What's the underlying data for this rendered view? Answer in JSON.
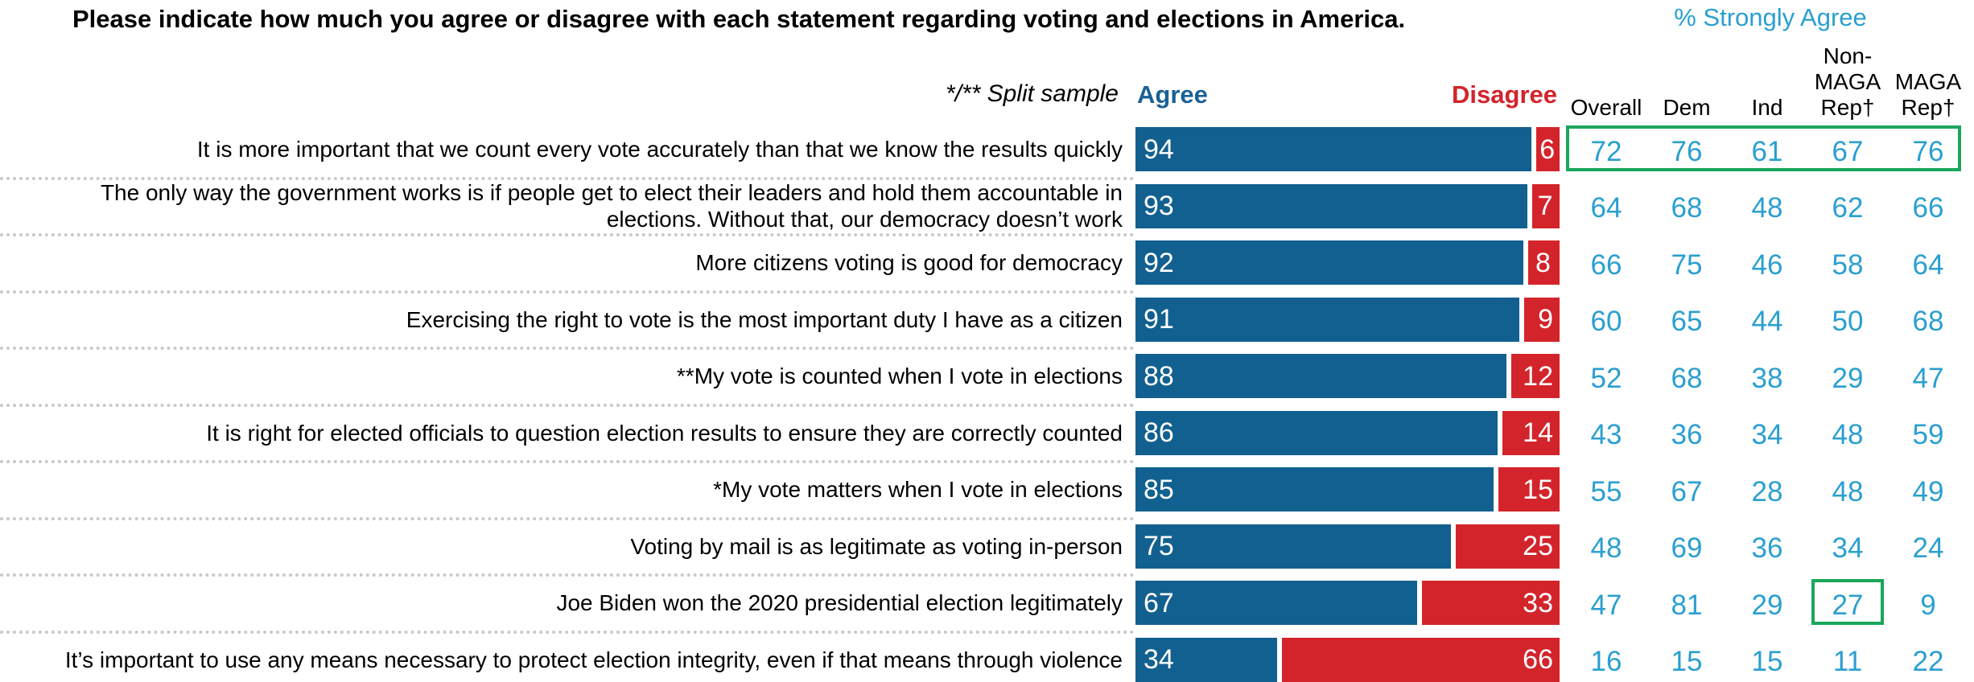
{
  "title": "Please indicate how much you agree or disagree with each statement regarding voting and elections in America.",
  "split_note": "*/** Split sample",
  "agree_label": "Agree",
  "disagree_label": "Disagree",
  "strongly_agree_title": "% Strongly Agree",
  "columns": [
    {
      "lines": [
        "Overall"
      ]
    },
    {
      "lines": [
        "Dem"
      ]
    },
    {
      "lines": [
        "Ind"
      ]
    },
    {
      "lines": [
        "Non-",
        "MAGA",
        "Rep†"
      ]
    },
    {
      "lines": [
        "MAGA",
        "Rep†"
      ]
    }
  ],
  "colors": {
    "agree": "#12608f",
    "disagree": "#d3242b",
    "strongly_agree": "#2a9fd0",
    "highlight": "#1aa65a"
  },
  "highlights": [
    {
      "type": "row",
      "row": 0
    },
    {
      "type": "cell",
      "row": 8,
      "col": 3
    }
  ],
  "chart_data": {
    "type": "bar",
    "stacked": true,
    "orientation": "horizontal",
    "categories": [
      "It is more important that we count every vote accurately than that we know the results quickly",
      "The only way the government works is if people get to elect their leaders and hold them accountable in elections. Without that, our democracy doesn’t work",
      "More citizens voting is good for democracy",
      "Exercising the right to vote is the most important duty I have as a citizen",
      "**My vote is counted when I vote in elections",
      "It is right for elected officials to question election results to ensure they are correctly counted",
      "*My vote matters when I vote in elections",
      "Voting by mail is as legitimate as voting in-person",
      "Joe Biden won the 2020 presidential election legitimately",
      "It’s important to use any means necessary to protect election integrity, even if that means through violence"
    ],
    "series": [
      {
        "name": "Agree",
        "values": [
          94,
          93,
          92,
          91,
          88,
          86,
          85,
          75,
          67,
          34
        ]
      },
      {
        "name": "Disagree",
        "values": [
          6,
          7,
          8,
          9,
          12,
          14,
          15,
          25,
          33,
          66
        ]
      }
    ],
    "strongly_agree_table": [
      [
        72,
        76,
        61,
        67,
        76
      ],
      [
        64,
        68,
        48,
        62,
        66
      ],
      [
        66,
        75,
        46,
        58,
        64
      ],
      [
        60,
        65,
        44,
        50,
        68
      ],
      [
        52,
        68,
        38,
        29,
        47
      ],
      [
        43,
        36,
        34,
        48,
        59
      ],
      [
        55,
        67,
        28,
        48,
        49
      ],
      [
        48,
        69,
        36,
        34,
        24
      ],
      [
        47,
        81,
        29,
        27,
        9
      ],
      [
        16,
        15,
        15,
        11,
        22
      ]
    ],
    "xlim": [
      0,
      100
    ]
  }
}
